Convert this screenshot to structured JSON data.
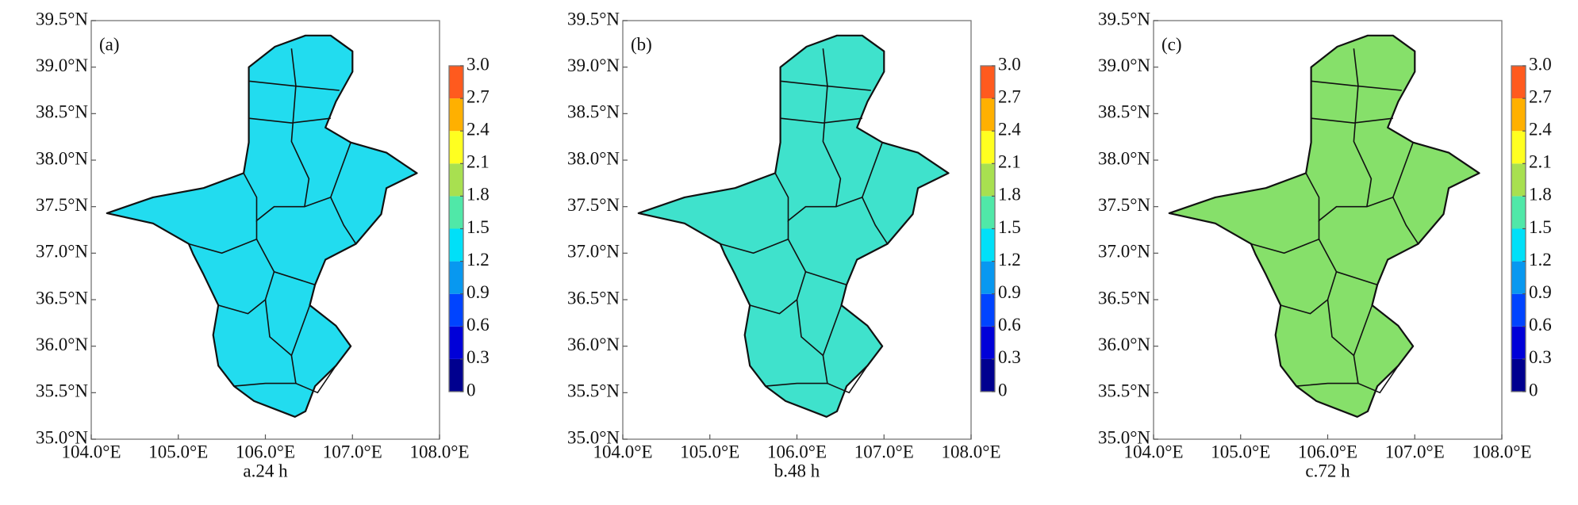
{
  "axes": {
    "xlim": [
      104,
      108
    ],
    "ylim": [
      35,
      39.5
    ],
    "xticks": [
      {
        "value": 104,
        "label": "104.0°E"
      },
      {
        "value": 105,
        "label": "105.0°E"
      },
      {
        "value": 106,
        "label": "106.0°E"
      },
      {
        "value": 107,
        "label": "107.0°E"
      },
      {
        "value": 108,
        "label": "108.0°E"
      }
    ],
    "yticks": [
      {
        "value": 35,
        "label": "35.0°N"
      },
      {
        "value": 35.5,
        "label": "35.5°N"
      },
      {
        "value": 36,
        "label": "36.0°N"
      },
      {
        "value": 36.5,
        "label": "36.5°N"
      },
      {
        "value": 37,
        "label": "37.0°N"
      },
      {
        "value": 37.5,
        "label": "37.5°N"
      },
      {
        "value": 38,
        "label": "38.0°N"
      },
      {
        "value": 38.5,
        "label": "38.5°N"
      },
      {
        "value": 39,
        "label": "39.0°N"
      },
      {
        "value": 39.5,
        "label": "39.5°N"
      }
    ]
  },
  "colorbar": {
    "lim": [
      0,
      3
    ],
    "ticks": [
      0,
      0.3,
      0.6,
      0.9,
      1.2,
      1.5,
      1.8,
      2.1,
      2.4,
      2.7,
      {
        "value": 3,
        "label": "3.0"
      }
    ],
    "colors": [
      "#00008f",
      "#0000d8",
      "#0044ff",
      "#0898f0",
      "#00e0f8",
      "#50e8a8",
      "#a8e050",
      "#ffff20",
      "#ffb000",
      "#ff5a1e"
    ]
  },
  "panels": [
    {
      "label": "(a)",
      "caption": "a.24 h",
      "fill": "#22dcef"
    },
    {
      "label": "(b)",
      "caption": "b.48 h",
      "fill": "#3fe2cc"
    },
    {
      "label": "(c)",
      "caption": "c.72 h",
      "fill": "#86e06a"
    }
  ]
}
